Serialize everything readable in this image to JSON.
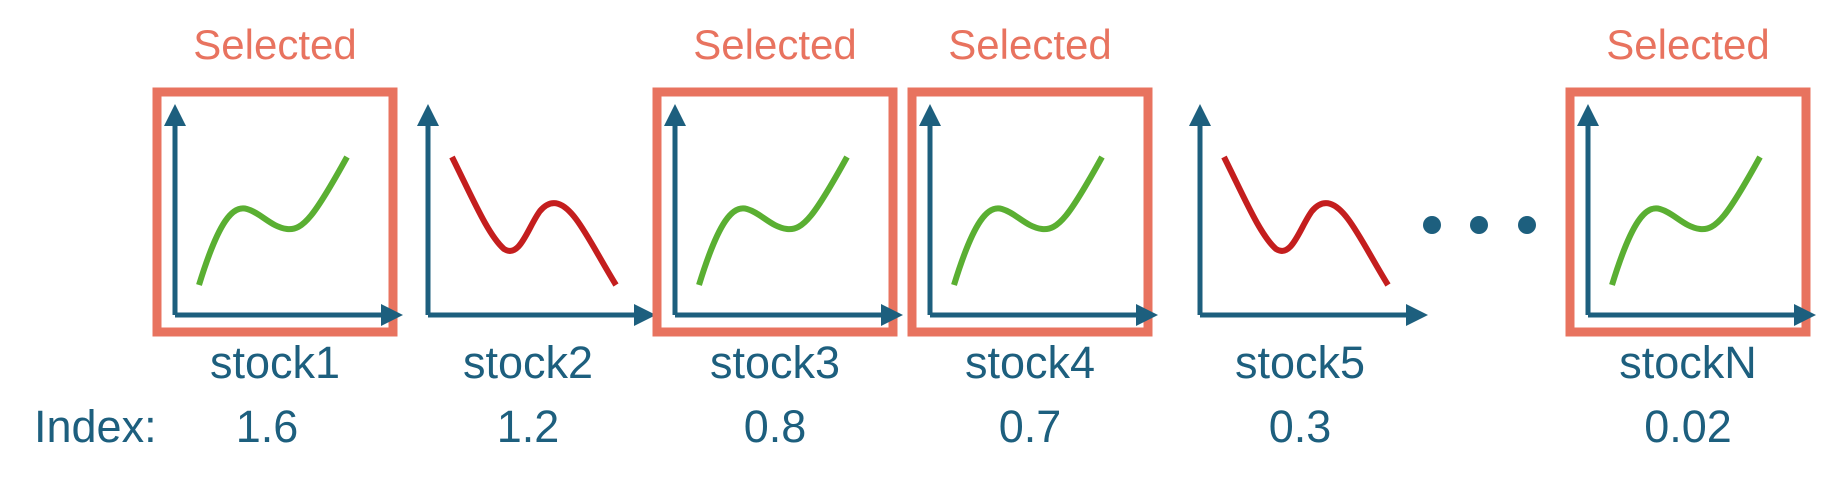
{
  "colors": {
    "axis": "#1D5F7E",
    "selected": "#E8735F",
    "up_trend": "#5AAF32",
    "down_trend": "#C41E1E",
    "text": "#1D5F7E"
  },
  "index_label": "Index:",
  "ellipsis": "...",
  "stocks": [
    {
      "name": "stock1",
      "index": "1.6",
      "trend": "up",
      "selected": true,
      "selected_label": "Selected"
    },
    {
      "name": "stock2",
      "index": "1.2",
      "trend": "down",
      "selected": false,
      "selected_label": ""
    },
    {
      "name": "stock3",
      "index": "0.8",
      "trend": "up",
      "selected": true,
      "selected_label": "Selected"
    },
    {
      "name": "stock4",
      "index": "0.7",
      "trend": "up",
      "selected": true,
      "selected_label": "Selected"
    },
    {
      "name": "stock5",
      "index": "0.3",
      "trend": "down",
      "selected": false,
      "selected_label": ""
    },
    {
      "name": "stockN",
      "index": "0.02",
      "trend": "up",
      "selected": true,
      "selected_label": "Selected"
    }
  ]
}
